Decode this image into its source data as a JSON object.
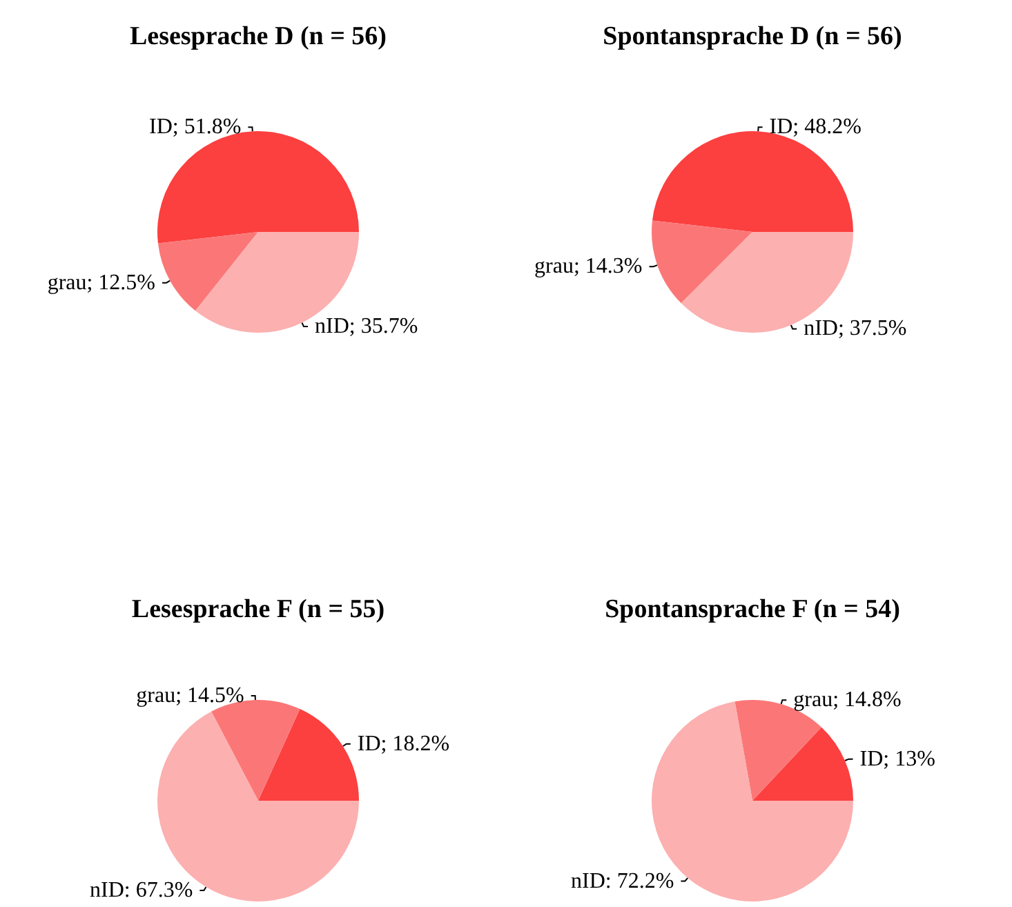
{
  "chart_data": [
    {
      "type": "pie",
      "title": "Lesesprache D (n = 56)",
      "categories": [
        "ID",
        "grau",
        "nID"
      ],
      "values": [
        51.8,
        12.5,
        35.7
      ],
      "colors": [
        "#fc3f3f",
        "#fb7777",
        "#fcb0b0"
      ],
      "value_labels": [
        "; 51.8%",
        "; 12.5%",
        "; 35.7%"
      ]
    },
    {
      "type": "pie",
      "title": "Spontansprache D (n = 56)",
      "categories": [
        "ID",
        "grau",
        "nID"
      ],
      "values": [
        48.2,
        14.3,
        37.5
      ],
      "colors": [
        "#fc3f3f",
        "#fb7777",
        "#fcb0b0"
      ],
      "value_labels": [
        "; 48.2%",
        "; 14.3%",
        "; 37.5%"
      ]
    },
    {
      "type": "pie",
      "title": "Lesesprache F (n = 55)",
      "categories": [
        "ID",
        "grau",
        "nID"
      ],
      "values": [
        18.2,
        14.5,
        67.3
      ],
      "colors": [
        "#fc3f3f",
        "#fb7777",
        "#fcb0b0"
      ],
      "value_labels": [
        "; 18.2%",
        "; 14.5%",
        ": 67.3%"
      ]
    },
    {
      "type": "pie",
      "title": "Spontansprache F (n = 54)",
      "categories": [
        "ID",
        "grau",
        "nID"
      ],
      "values": [
        13,
        14.8,
        72.2
      ],
      "colors": [
        "#fc3f3f",
        "#fb7777",
        "#fcb0b0"
      ],
      "value_labels": [
        "; 13%",
        "; 14.8%",
        ": 72.2%"
      ]
    }
  ]
}
